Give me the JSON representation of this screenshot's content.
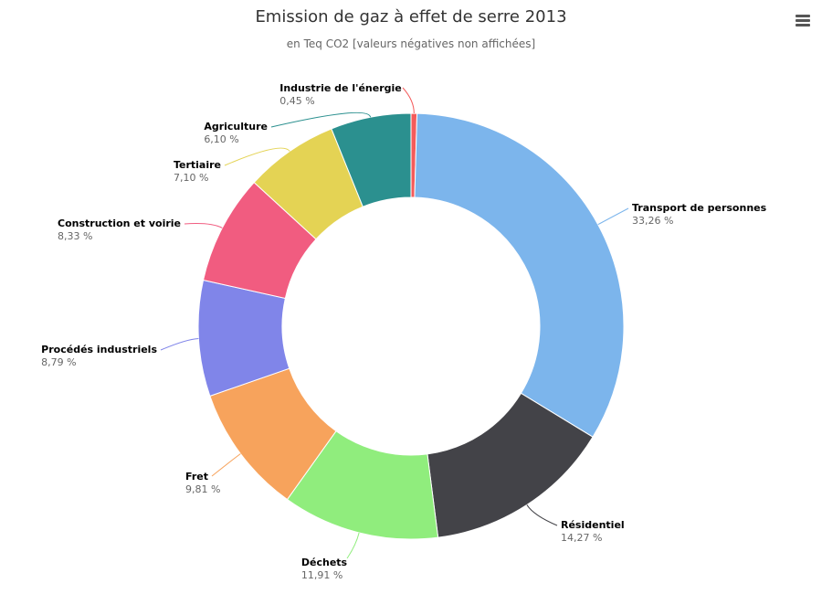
{
  "chart_data": {
    "type": "pie",
    "variant": "donut",
    "title": "Emission de gaz à effet de serre 2013",
    "subtitle": "en Teq CO2 [valeurs négatives non affichées]",
    "slices": [
      {
        "name": "Industrie de l'énergie",
        "value": 0.45,
        "label": "0,45 %",
        "color": "#f45b5b"
      },
      {
        "name": "Transport de personnes",
        "value": 33.26,
        "label": "33,26 %",
        "color": "#7cb5ec"
      },
      {
        "name": "Résidentiel",
        "value": 14.27,
        "label": "14,27 %",
        "color": "#434348"
      },
      {
        "name": "Déchets",
        "value": 11.91,
        "label": "11,91 %",
        "color": "#90ed7d"
      },
      {
        "name": "Fret",
        "value": 9.81,
        "label": "9,81 %",
        "color": "#f7a35c"
      },
      {
        "name": "Procédés industriels",
        "value": 8.79,
        "label": "8,79 %",
        "color": "#8085e9"
      },
      {
        "name": "Construction et voirie",
        "value": 8.33,
        "label": "8,33 %",
        "color": "#f15c80"
      },
      {
        "name": "Tertiaire",
        "value": 7.1,
        "label": "7,10 %",
        "color": "#e4d354"
      },
      {
        "name": "Agriculture",
        "value": 6.1,
        "label": "6,10 %",
        "color": "#2b908f"
      }
    ],
    "legend": "none"
  },
  "menu": {
    "icon": "hamburger-menu-icon"
  }
}
